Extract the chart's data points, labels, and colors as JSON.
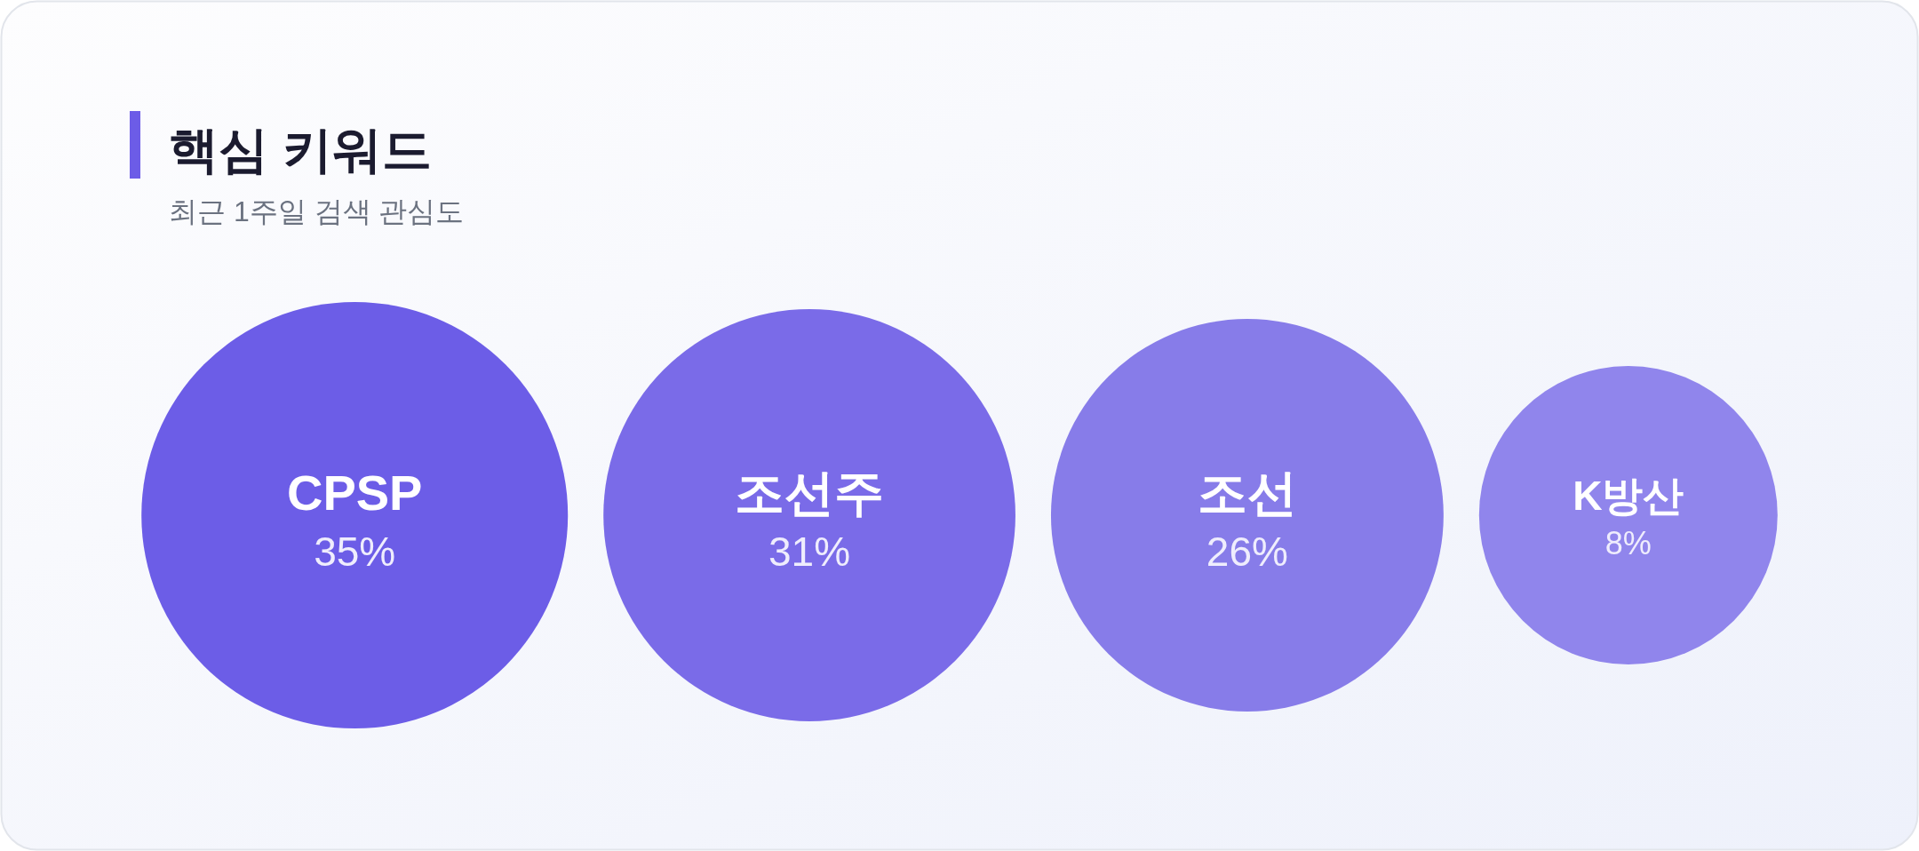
{
  "chart_data": {
    "type": "other",
    "title": "핵심 키워드",
    "subtitle": "최근 1주일 검색 관심도",
    "categories": [
      "CPSP",
      "조선주",
      "조선",
      "K방산"
    ],
    "values": [
      35,
      31,
      26,
      8
    ],
    "value_labels": [
      "35%",
      "31%",
      "26%",
      "8%"
    ],
    "colors": [
      "#6c5de7",
      "#7a6be8",
      "#877ce9",
      "#9085ec"
    ]
  }
}
